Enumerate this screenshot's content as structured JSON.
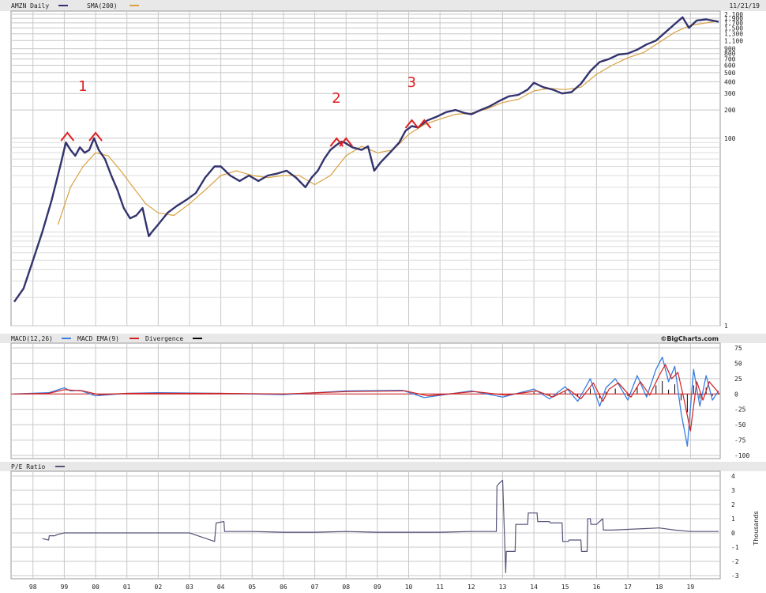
{
  "date_label": "11/21/19",
  "watermark": "©BigCharts.com",
  "annotations": [
    {
      "label": "1",
      "x": 1999.7
    },
    {
      "label": "2",
      "x": 2007.8
    },
    {
      "label": "3",
      "x": 2010.2
    }
  ],
  "colors": {
    "price": "#33336e",
    "sma": "#d9a040",
    "macd": "#3a7de0",
    "macd_ema": "#d02020",
    "divergence": "#000000",
    "pe": "#55557a",
    "grid": "#c8c8c8",
    "annotation": "#e02020",
    "panel_header": "#e8e8e8"
  },
  "chart_data": [
    {
      "type": "line",
      "title": "AMZN Daily",
      "scale": "log",
      "ylim": [
        1,
        2100
      ],
      "y_ticks": [
        1,
        100,
        200,
        300,
        400,
        500,
        600,
        700,
        800,
        900,
        1100,
        1300,
        1500,
        1700,
        1900,
        2100
      ],
      "y_tick_labels": [
        "1",
        "100",
        "200",
        "300",
        "400",
        "500",
        "600",
        "700",
        "800",
        "900",
        "1,100",
        "1,300",
        "1,500",
        "1,700",
        "1,900",
        "2,100"
      ],
      "legend": [
        "AMZN Daily",
        "SMA(200)"
      ],
      "series": [
        {
          "name": "AMZN Daily",
          "x": [
            1997.4,
            1997.7,
            1998.0,
            1998.3,
            1998.6,
            1998.9,
            1999.05,
            1999.2,
            1999.35,
            1999.5,
            1999.65,
            1999.8,
            1999.95,
            2000.1,
            2000.3,
            2000.5,
            2000.7,
            2000.9,
            2001.1,
            2001.3,
            2001.5,
            2001.7,
            2001.8,
            2002.0,
            2002.3,
            2002.6,
            2002.9,
            2003.2,
            2003.5,
            2003.8,
            2004.0,
            2004.3,
            2004.6,
            2004.9,
            2005.2,
            2005.5,
            2005.8,
            2006.1,
            2006.4,
            2006.7,
            2006.9,
            2007.1,
            2007.3,
            2007.5,
            2007.7,
            2007.85,
            2007.95,
            2008.2,
            2008.5,
            2008.7,
            2008.9,
            2009.1,
            2009.4,
            2009.7,
            2009.9,
            2010.1,
            2010.3,
            2010.6,
            2010.9,
            2011.2,
            2011.5,
            2011.8,
            2012.0,
            2012.3,
            2012.6,
            2012.9,
            2013.2,
            2013.5,
            2013.8,
            2014.0,
            2014.3,
            2014.6,
            2014.9,
            2015.2,
            2015.5,
            2015.8,
            2016.1,
            2016.4,
            2016.7,
            2017.0,
            2017.3,
            2017.6,
            2017.9,
            2018.2,
            2018.5,
            2018.75,
            2018.95,
            2019.2,
            2019.5,
            2019.9
          ],
          "y": [
            1.8,
            2.5,
            5,
            10,
            22,
            55,
            90,
            75,
            65,
            80,
            70,
            75,
            100,
            75,
            60,
            40,
            28,
            18,
            14,
            15,
            18,
            9,
            10,
            12,
            16,
            19,
            22,
            26,
            38,
            50,
            50,
            40,
            35,
            40,
            35,
            40,
            42,
            45,
            38,
            30,
            38,
            45,
            60,
            75,
            85,
            92,
            90,
            80,
            75,
            82,
            45,
            55,
            70,
            90,
            120,
            135,
            130,
            155,
            170,
            190,
            200,
            185,
            180,
            200,
            220,
            250,
            280,
            290,
            330,
            390,
            350,
            330,
            300,
            310,
            380,
            520,
            650,
            700,
            780,
            800,
            880,
            1000,
            1100,
            1350,
            1650,
            1950,
            1500,
            1800,
            1850,
            1750
          ]
        },
        {
          "name": "SMA(200)",
          "x": [
            1998.8,
            1999.2,
            1999.6,
            2000.0,
            2000.4,
            2000.8,
            2001.2,
            2001.6,
            2002.0,
            2002.5,
            2003.0,
            2003.5,
            2004.0,
            2004.5,
            2005.0,
            2005.5,
            2006.0,
            2006.5,
            2007.0,
            2007.5,
            2008.0,
            2008.5,
            2009.0,
            2009.5,
            2010.0,
            2010.5,
            2011.0,
            2011.5,
            2012.0,
            2012.5,
            2013.0,
            2013.5,
            2014.0,
            2014.5,
            2015.0,
            2015.5,
            2016.0,
            2016.5,
            2017.0,
            2017.5,
            2018.0,
            2018.5,
            2019.0,
            2019.9
          ],
          "y": [
            12,
            30,
            50,
            70,
            65,
            45,
            30,
            20,
            16,
            15,
            20,
            28,
            40,
            45,
            40,
            38,
            40,
            40,
            32,
            40,
            65,
            82,
            70,
            75,
            110,
            140,
            160,
            180,
            185,
            205,
            240,
            260,
            320,
            340,
            330,
            350,
            480,
            600,
            720,
            820,
            1050,
            1350,
            1600,
            1780
          ]
        }
      ]
    },
    {
      "type": "line",
      "title": "MACD(12,26)",
      "ylim": [
        -100,
        75
      ],
      "y_ticks": [
        75,
        50,
        25,
        0,
        -25,
        -50,
        -75,
        -100
      ],
      "legend": [
        "MACD(12,26)",
        "MACD EMA(9)",
        "Divergence"
      ],
      "note": "MACD stays near 0 until 2014 and then oscillates with growing amplitude, reaching about +60 in early 2018 and about -85 in late 2018",
      "series": [
        {
          "name": "MACD(12,26)",
          "x": [
            1997.4,
            1998.5,
            1999.0,
            1999.2,
            1999.5,
            2000.0,
            2001.0,
            2002.0,
            2004.0,
            2006.0,
            2008.0,
            2009.8,
            2010.5,
            2012.0,
            2013.0,
            2014.0,
            2014.5,
            2015.0,
            2015.4,
            2015.8,
            2016.1,
            2016.3,
            2016.6,
            2017.0,
            2017.3,
            2017.6,
            2017.9,
            2018.1,
            2018.3,
            2018.5,
            2018.7,
            2018.9,
            2019.1,
            2019.3,
            2019.5,
            2019.7,
            2019.9
          ],
          "y": [
            0,
            2,
            10,
            5,
            6,
            -3,
            1,
            2,
            1,
            -1,
            5,
            6,
            -6,
            5,
            -5,
            8,
            -8,
            12,
            -12,
            25,
            -20,
            10,
            25,
            -10,
            30,
            -5,
            40,
            60,
            20,
            45,
            -30,
            -85,
            40,
            -20,
            30,
            -10,
            5
          ]
        },
        {
          "name": "MACD EMA(9)",
          "x": [
            1997.4,
            1998.5,
            1999.0,
            1999.3,
            1999.6,
            2000.1,
            2001.0,
            2002.0,
            2004.0,
            2006.0,
            2008.1,
            2009.9,
            2010.6,
            2012.1,
            2013.1,
            2014.1,
            2014.6,
            2015.1,
            2015.5,
            2015.9,
            2016.2,
            2016.4,
            2016.7,
            2017.1,
            2017.4,
            2017.7,
            2018.0,
            2018.2,
            2018.4,
            2018.6,
            2018.8,
            2019.0,
            2019.2,
            2019.4,
            2019.6,
            2019.9
          ],
          "y": [
            0,
            1,
            7,
            6,
            5,
            -1,
            1,
            1,
            1,
            0,
            4,
            5,
            -3,
            4,
            -2,
            5,
            -5,
            8,
            -8,
            18,
            -12,
            8,
            18,
            -5,
            20,
            -2,
            30,
            48,
            25,
            35,
            -10,
            -60,
            20,
            -10,
            20,
            2
          ]
        }
      ]
    },
    {
      "type": "line",
      "title": "P/E Ratio",
      "ylabel": "Thousands",
      "ylim": [
        -3,
        4
      ],
      "y_ticks": [
        4,
        3,
        2,
        1,
        0,
        -1,
        -2,
        -3
      ],
      "legend": [
        "P/E Ratio"
      ],
      "series": [
        {
          "name": "P/E Ratio",
          "x": [
            1998.3,
            1998.5,
            1998.52,
            1998.7,
            1998.8,
            1999.0,
            2000.0,
            2001.0,
            2002.0,
            2003.0,
            2003.8,
            2003.85,
            2004.1,
            2004.12,
            2004.3,
            2005.0,
            2006.0,
            2007.0,
            2008.0,
            2009.0,
            2010.0,
            2011.0,
            2012.0,
            2012.8,
            2012.82,
            2012.9,
            2013.0,
            2013.1,
            2013.12,
            2013.4,
            2013.42,
            2013.8,
            2013.82,
            2014.1,
            2014.12,
            2014.5,
            2014.52,
            2014.9,
            2014.92,
            2015.1,
            2015.12,
            2015.5,
            2015.52,
            2015.7,
            2015.72,
            2015.8,
            2015.82,
            2016.0,
            2016.2,
            2016.22,
            2016.5,
            2017.0,
            2017.5,
            2018.0,
            2018.5,
            2019.0,
            2019.9
          ],
          "y": [
            -0.4,
            -0.5,
            -0.2,
            -0.2,
            -0.1,
            0,
            0,
            0,
            0,
            0,
            -0.6,
            0.7,
            0.8,
            0.1,
            0.1,
            0.1,
            0.05,
            0.05,
            0.1,
            0.05,
            0.05,
            0.05,
            0.1,
            0.1,
            3.3,
            3.5,
            3.7,
            -2.8,
            -1.3,
            -1.3,
            0.6,
            0.6,
            1.4,
            1.4,
            0.8,
            0.8,
            0.7,
            0.7,
            -0.6,
            -0.6,
            -0.5,
            -0.5,
            -1.3,
            -1.3,
            1.0,
            1.0,
            0.6,
            0.6,
            1.0,
            0.2,
            0.2,
            0.25,
            0.3,
            0.35,
            0.2,
            0.1,
            0.1
          ]
        }
      ]
    }
  ],
  "x_axis": {
    "ticks": [
      1998,
      1999,
      2000,
      2001,
      2002,
      2003,
      2004,
      2005,
      2006,
      2007,
      2008,
      2009,
      2010,
      2011,
      2012,
      2013,
      2014,
      2015,
      2016,
      2017,
      2018,
      2019
    ],
    "labels": [
      "98",
      "99",
      "00",
      "01",
      "02",
      "03",
      "04",
      "05",
      "06",
      "07",
      "08",
      "09",
      "10",
      "11",
      "12",
      "13",
      "14",
      "15",
      "16",
      "17",
      "18",
      "19"
    ]
  }
}
